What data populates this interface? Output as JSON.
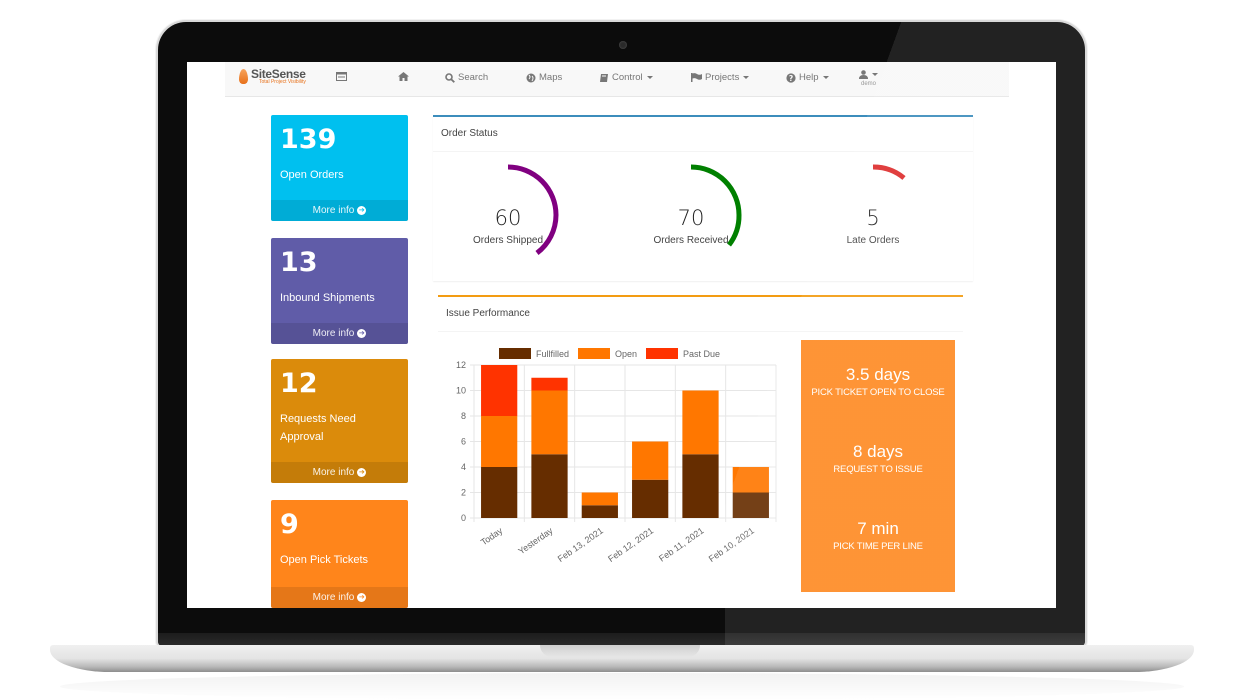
{
  "navbar": {
    "brand": {
      "name": "SiteSense",
      "tagline": "Total Project Visibility"
    },
    "items": [
      {
        "id": "sidebar-toggle",
        "icon": "list-icon",
        "label": ""
      },
      {
        "id": "home",
        "icon": "home-icon",
        "label": ""
      },
      {
        "id": "search",
        "icon": "search-icon",
        "label": "Search"
      },
      {
        "id": "maps",
        "icon": "globe-icon",
        "label": "Maps"
      },
      {
        "id": "control",
        "icon": "book-icon",
        "label": "Control",
        "dropdown": true
      },
      {
        "id": "projects",
        "icon": "flag-icon",
        "label": "Projects",
        "dropdown": true
      },
      {
        "id": "help",
        "icon": "question-circle-icon",
        "label": "Help",
        "dropdown": true
      }
    ],
    "user": {
      "icon": "user-icon",
      "name": "demo"
    }
  },
  "info_boxes": [
    {
      "value": "139",
      "label": "Open Orders",
      "footer": "More info",
      "color": "#00c0ef"
    },
    {
      "value": "13",
      "label": "Inbound Shipments",
      "footer": "More info",
      "color": "#605ca8"
    },
    {
      "value": "12",
      "label": "Requests Need Approval",
      "footer": "More info",
      "color": "#db8b0b"
    },
    {
      "value": "9",
      "label": "Open Pick Tickets",
      "footer": "More info",
      "color": "#ff851b"
    }
  ],
  "order_status": {
    "title": "Order Status",
    "gauges": [
      {
        "value": "60",
        "label": "Orders Shipped",
        "color": "#800080"
      },
      {
        "value": "70",
        "label": "Orders Received",
        "color": "#008000"
      },
      {
        "value": "5",
        "label": "Late Orders",
        "color": "#dd2c2c"
      }
    ]
  },
  "issue_performance": {
    "title": "Issue Performance",
    "stats": [
      {
        "value": "3.5 days",
        "caption": "PICK TICKET OPEN TO CLOSE"
      },
      {
        "value": "8 days",
        "caption": "REQUEST TO ISSUE"
      },
      {
        "value": "7 min",
        "caption": "PICK TIME PER LINE"
      }
    ]
  },
  "chart_data": {
    "type": "bar",
    "stacked": true,
    "title": "Issue Performance",
    "categories": [
      "Today",
      "Yesterday",
      "Feb 13, 2021",
      "Feb 12, 2021",
      "Feb 11, 2021",
      "Feb 10, 2021"
    ],
    "series": [
      {
        "name": "Fullfilled",
        "color": "#662d00",
        "values": [
          4,
          5,
          1,
          3,
          5,
          2
        ]
      },
      {
        "name": "Open",
        "color": "#ff7700",
        "values": [
          4,
          5,
          1,
          3,
          5,
          2
        ]
      },
      {
        "name": "Past Due",
        "color": "#ff3300",
        "values": [
          4,
          1,
          0,
          0,
          0,
          0
        ]
      }
    ],
    "ylim": [
      0,
      12
    ],
    "yticks": [
      0,
      2,
      4,
      6,
      8,
      10,
      12
    ],
    "xlabel": "",
    "ylabel": "",
    "grid": true,
    "legend_position": "top"
  }
}
